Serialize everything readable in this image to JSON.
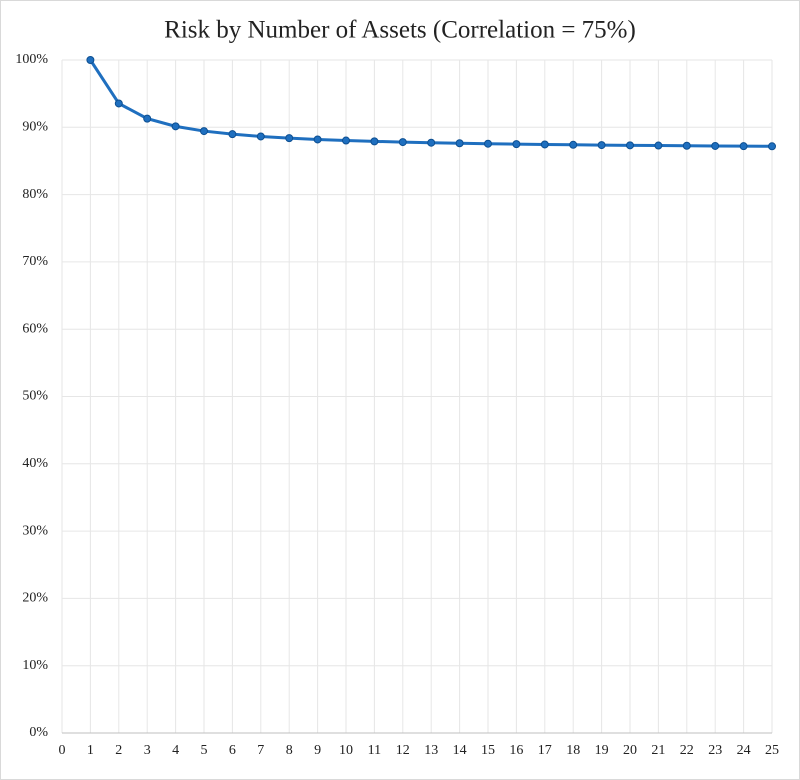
{
  "chart_data": {
    "type": "line",
    "title": "Risk by Number of Assets (Correlation = 75%)",
    "x": [
      1,
      2,
      3,
      4,
      5,
      6,
      7,
      8,
      9,
      10,
      11,
      12,
      13,
      14,
      15,
      16,
      17,
      18,
      19,
      20,
      21,
      22,
      23,
      24,
      25
    ],
    "series": [
      {
        "color": "#1f6fbf",
        "values": [
          100,
          93.54,
          91.29,
          90.14,
          89.44,
          88.98,
          88.64,
          88.39,
          88.19,
          88.03,
          87.91,
          87.8,
          87.71,
          87.63,
          87.56,
          87.5,
          87.45,
          87.4,
          87.36,
          87.32,
          87.29,
          87.26,
          87.23,
          87.2,
          87.18
        ]
      }
    ],
    "xlim": [
      0,
      25
    ],
    "xticks": [
      0,
      1,
      2,
      3,
      4,
      5,
      6,
      7,
      8,
      9,
      10,
      11,
      12,
      13,
      14,
      15,
      16,
      17,
      18,
      19,
      20,
      21,
      22,
      23,
      24,
      25
    ],
    "ylim": [
      0,
      100
    ],
    "yticks": [
      {
        "value": 0,
        "label": "0%"
      },
      {
        "value": 10,
        "label": "10%"
      },
      {
        "value": 20,
        "label": "20%"
      },
      {
        "value": 30,
        "label": "30%"
      },
      {
        "value": 40,
        "label": "40%"
      },
      {
        "value": 50,
        "label": "50%"
      },
      {
        "value": 60,
        "label": "60%"
      },
      {
        "value": 70,
        "label": "70%"
      },
      {
        "value": 80,
        "label": "80%"
      },
      {
        "value": 90,
        "label": "90%"
      },
      {
        "value": 100,
        "label": "100%"
      }
    ],
    "grid": true
  }
}
